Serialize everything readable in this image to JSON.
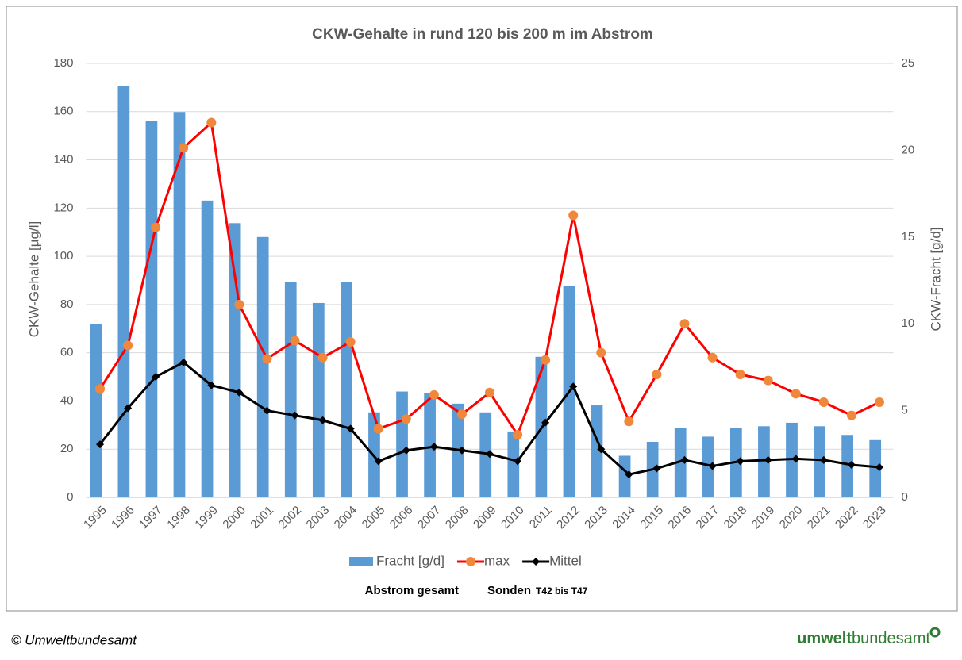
{
  "chart_data": {
    "type": "bar-line",
    "title": "CKW-Gehalte in rund 120 bis 200 m im Abstrom",
    "ylabel": "CKW-Gehalte [µg/l]",
    "y2label": "CKW-Fracht [g/d]",
    "subtitle": {
      "part1": "Abstrom gesamt",
      "part2": "Sonden",
      "part3": "T42 bis T47"
    },
    "categories": [
      "1995",
      "1996",
      "1997",
      "1998",
      "1999",
      "2000",
      "2001",
      "2002",
      "2003",
      "2004",
      "2005",
      "2006",
      "2007",
      "2008",
      "2009",
      "2010",
      "2011",
      "2012",
      "2013",
      "2014",
      "2015",
      "2016",
      "2017",
      "2018",
      "2019",
      "2020",
      "2021",
      "2022",
      "2023"
    ],
    "ylim": [
      0,
      180
    ],
    "yticks": [
      0,
      20,
      40,
      60,
      80,
      100,
      120,
      140,
      160,
      180
    ],
    "y2lim": [
      0,
      25
    ],
    "y2ticks": [
      0,
      5,
      10,
      15,
      20,
      25
    ],
    "grid": true,
    "legend": "bottom",
    "series": [
      {
        "name": "Fracht [g/d]",
        "type": "bar",
        "axis": "y2",
        "color": "#5b9bd5",
        "values": [
          10.0,
          23.7,
          21.7,
          22.2,
          17.1,
          15.8,
          15.0,
          12.4,
          11.2,
          12.4,
          4.9,
          6.1,
          6.0,
          5.4,
          4.9,
          3.8,
          8.1,
          12.2,
          5.3,
          2.4,
          3.2,
          4.0,
          3.5,
          4.0,
          4.1,
          4.3,
          4.1,
          3.6,
          3.3
        ]
      },
      {
        "name": "max",
        "type": "line",
        "color": "#ff0000",
        "marker_color": "#f0883c",
        "values": [
          45,
          63,
          112,
          145,
          155.5,
          80,
          57.5,
          65,
          58,
          64.5,
          28.5,
          32.5,
          42.5,
          34.5,
          43.5,
          26,
          57,
          117,
          60,
          31.5,
          51,
          72,
          58,
          51,
          48.5,
          43,
          39.5,
          34,
          39.5
        ]
      },
      {
        "name": "Mittel",
        "type": "line",
        "color": "#000000",
        "marker_color": "#000000",
        "values": [
          22,
          37,
          50,
          56,
          46.5,
          43.5,
          36,
          34,
          32,
          28.5,
          15,
          19.5,
          21,
          19.5,
          18,
          15,
          31,
          46,
          20,
          9.5,
          12,
          15.5,
          13,
          15,
          15.5,
          16,
          15.5,
          13.5,
          12.5
        ]
      }
    ]
  },
  "footer": {
    "copyright": "© Umweltbundesamt",
    "logo_bold": "umwelt",
    "logo_rest": "bundesamt"
  }
}
